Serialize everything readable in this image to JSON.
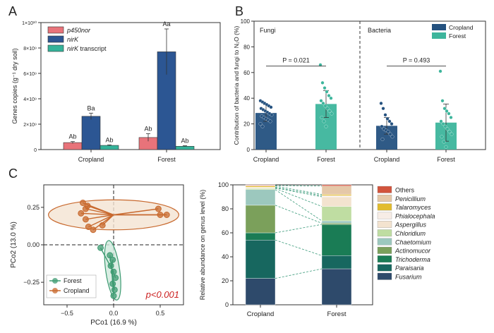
{
  "panel_labels": {
    "a": "A",
    "b": "B",
    "c": "C"
  },
  "colors": {
    "p450nor": "#E8737A",
    "nirK": "#2C5693",
    "nirK_transcript": "#34B39A",
    "cropland": "#24517F",
    "forest": "#3DB59C",
    "pcoa_cropland": "#C8692E",
    "pcoa_cropland_fill": "#F4E3D2",
    "pcoa_forest": "#3D9B72",
    "pcoa_forest_fill": "#CFE9DC",
    "sig_red": "#CC2222"
  },
  "chart_data": [
    {
      "id": "A",
      "type": "bar",
      "title": "",
      "xlabel": "",
      "ylabel": "Genes copies (g⁻¹ dry soil)",
      "ylim": [
        0,
        10000000000
      ],
      "yticks": [
        0,
        2000000000,
        4000000000,
        6000000000,
        8000000000,
        10000000000
      ],
      "ytick_labels": [
        "0",
        "2×10⁹",
        "4×10⁹",
        "6×10⁹",
        "8×10⁹",
        "1×10¹⁰"
      ],
      "categories": [
        "Cropland",
        "Forest"
      ],
      "series": [
        {
          "name": "p450nor",
          "italic": true,
          "values": [
            550000000,
            950000000
          ],
          "errors": [
            80000000,
            300000000
          ],
          "labels": [
            "Ab",
            "Ab"
          ]
        },
        {
          "name": "nirK",
          "italic": true,
          "values": [
            2620000000,
            7700000000
          ],
          "errors": [
            250000000,
            1800000000
          ],
          "labels": [
            "Ba",
            "Aa"
          ]
        },
        {
          "name": "nirK transcript",
          "italic_prefix": "nirK",
          "suffix": " transcript",
          "values": [
            330000000,
            260000000
          ],
          "errors": [
            40000000,
            40000000
          ],
          "labels": [
            "Ab",
            "Ab"
          ]
        }
      ],
      "legend_position": "top-left"
    },
    {
      "id": "B",
      "type": "bar",
      "ylabel": "Contribution of bacteria and fungi to N₂O (%)",
      "ylim": [
        0,
        100
      ],
      "yticks": [
        0,
        20,
        40,
        60,
        80,
        100
      ],
      "facets": [
        {
          "name": "Fungi",
          "categories": [
            "Cropland",
            "Forest"
          ],
          "values": [
            28.5,
            35.5
          ],
          "errors": [
            6.5,
            10.5
          ],
          "p_value": "P = 0.021",
          "points": [
            [
              38,
              37,
              36,
              35,
              34,
              33,
              32,
              31,
              30,
              29,
              28,
              27,
              26,
              25,
              24,
              23,
              22,
              20,
              18
            ],
            [
              66,
              52,
              48,
              45,
              42,
              40,
              38,
              36,
              34,
              32,
              30,
              28,
              25,
              22,
              18
            ]
          ]
        },
        {
          "name": "Bacteria",
          "categories": [
            "Cropland",
            "Forest"
          ],
          "values": [
            18.5,
            21.0
          ],
          "errors": [
            6.5,
            14.5
          ],
          "p_value": "P = 0.493",
          "points": [
            [
              36,
              32,
              27,
              24,
              22,
              20,
              18,
              16,
              15,
              14,
              12,
              10,
              8
            ],
            [
              61,
              38,
              32,
              30,
              28,
              25,
              22,
              20,
              18,
              16,
              14,
              12,
              10,
              6,
              2
            ]
          ]
        }
      ],
      "legend": [
        "Cropland",
        "Forest"
      ],
      "legend_position": "top-right"
    },
    {
      "id": "C1",
      "type": "scatter",
      "xlabel": "PCo1 (16.9 %)",
      "ylabel": "PCo2 (13.0 %)",
      "xlim": [
        -0.75,
        0.75
      ],
      "ylim": [
        -0.4,
        0.4
      ],
      "xticks": [
        -0.5,
        0.0,
        0.5
      ],
      "xtick_labels": [
        "−0.5",
        "0.0",
        "0.5"
      ],
      "yticks": [
        -0.25,
        0.0,
        0.25
      ],
      "ytick_labels": [
        "−0.25",
        "0.00",
        "0.25"
      ],
      "series": [
        {
          "name": "Forest",
          "centroid": [
            -0.02,
            -0.16
          ],
          "points": [
            [
              -0.14,
              -0.02
            ],
            [
              -0.04,
              -0.07
            ],
            [
              -0.01,
              -0.1
            ],
            [
              -0.03,
              -0.14
            ],
            [
              0.0,
              -0.18
            ],
            [
              0.02,
              -0.22
            ],
            [
              -0.01,
              -0.26
            ],
            [
              0.01,
              -0.3
            ],
            [
              0.0,
              -0.34
            ]
          ],
          "ellipse": {
            "cx": -0.01,
            "cy": -0.17,
            "rx": 0.075,
            "ry": 0.2,
            "angle_deg": -8
          }
        },
        {
          "name": "Cropland",
          "centroid": [
            0.0,
            0.2
          ],
          "points": [
            [
              -0.33,
              0.28
            ],
            [
              -0.28,
              0.26
            ],
            [
              -0.35,
              0.21
            ],
            [
              -0.3,
              0.17
            ],
            [
              -0.27,
              0.12
            ],
            [
              -0.22,
              0.1
            ],
            [
              -0.12,
              0.13
            ],
            [
              0.48,
              0.24
            ],
            [
              0.5,
              0.2
            ],
            [
              0.57,
              0.2
            ],
            [
              -0.3,
              0.24
            ]
          ],
          "ellipse": {
            "cx": 0.0,
            "cy": 0.2,
            "rx": 0.7,
            "ry": 0.1,
            "angle_deg": 0
          }
        }
      ],
      "annotation": "p<0.001",
      "legend_position": "bottom-left"
    },
    {
      "id": "C2",
      "type": "bar",
      "stacked": true,
      "ylabel": "Relative abundance on genus level (%)",
      "ylim": [
        0,
        100
      ],
      "yticks": [
        0,
        20,
        40,
        60,
        80,
        100
      ],
      "categories": [
        "Cropland",
        "Forest"
      ],
      "series": [
        {
          "name": "Fusarium",
          "color": "#2E4A6B",
          "values": [
            22,
            30
          ]
        },
        {
          "name": "Paraisaria",
          "color": "#17675F",
          "values": [
            32,
            11
          ]
        },
        {
          "name": "Trichoderma",
          "color": "#1A7C55",
          "values": [
            6,
            26
          ]
        },
        {
          "name": "Actinomucor",
          "color": "#7BA05B",
          "values": [
            23,
            1
          ]
        },
        {
          "name": "Chaetomium",
          "color": "#9CC8BE",
          "values": [
            13,
            2
          ]
        },
        {
          "name": "Chloridium",
          "color": "#BFDDA2",
          "values": [
            1,
            12
          ]
        },
        {
          "name": "Aspergillus",
          "color": "#F3E3CF",
          "values": [
            0.5,
            8
          ]
        },
        {
          "name": "Phialocephala",
          "color": "#F7EDE6",
          "values": [
            0.5,
            1
          ]
        },
        {
          "name": "Talaromyces",
          "color": "#E2BC2E",
          "values": [
            1,
            1
          ]
        },
        {
          "name": "Penicillium",
          "color": "#E5C8A8",
          "values": [
            0.5,
            7
          ]
        },
        {
          "name": "Others",
          "color": "#D2543D",
          "values": [
            0.5,
            1
          ]
        }
      ],
      "legend_position": "right"
    }
  ]
}
